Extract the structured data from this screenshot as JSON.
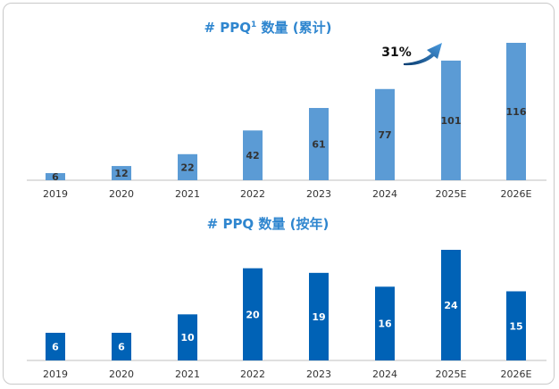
{
  "chart_data": [
    {
      "type": "bar",
      "title": "# PPQ¹ 数量（累计）",
      "title_prefix": "# PPQ",
      "title_sup": "1",
      "title_suffix": " 数量 (累计)",
      "categories": [
        "2019",
        "2020",
        "2021",
        "2022",
        "2023",
        "2024",
        "2025E",
        "2026E"
      ],
      "values": [
        6,
        12,
        22,
        42,
        61,
        77,
        101,
        116
      ],
      "color": "#5b9bd5",
      "label_color": "dark",
      "annotation": "31%",
      "xlabel": "",
      "ylabel": ""
    },
    {
      "type": "bar",
      "title": "# PPQ 数量 (按年)",
      "categories": [
        "2019",
        "2020",
        "2021",
        "2022",
        "2023",
        "2024",
        "2025E",
        "2026E"
      ],
      "values": [
        6,
        6,
        10,
        20,
        19,
        16,
        24,
        15
      ],
      "color": "#0062b6",
      "label_color": "light",
      "xlabel": "",
      "ylabel": ""
    }
  ],
  "colors": {
    "frame_border": "#c9c9c9",
    "axis": "#bfbfbf",
    "title": "#2f86cf",
    "arrow": "#2f7fc9"
  }
}
